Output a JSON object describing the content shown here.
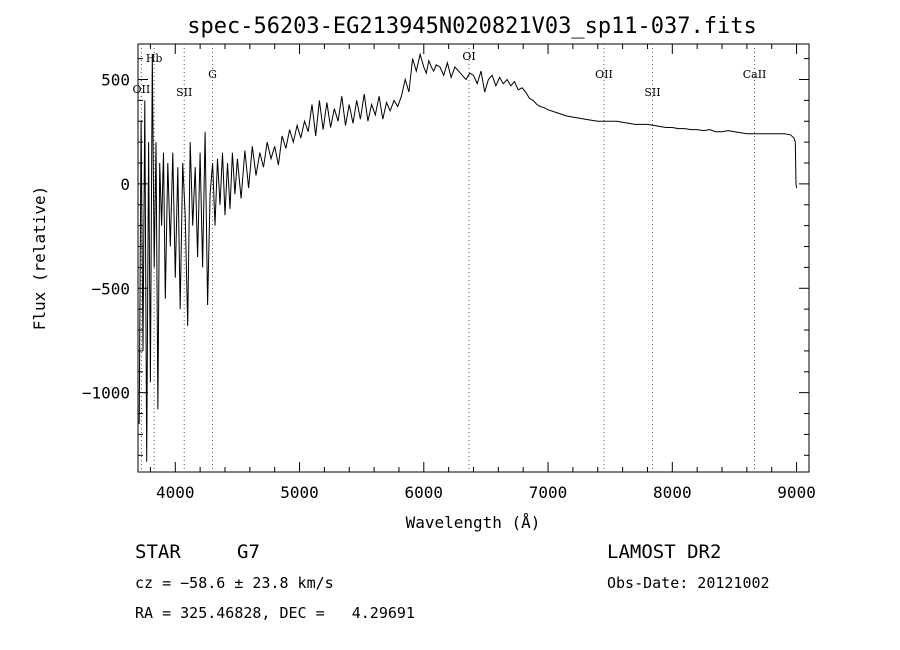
{
  "chart_data": {
    "type": "line",
    "title": "spec-56203-EG213945N020821V03_sp11-037.fits",
    "xlabel": "Wavelength (Å)",
    "ylabel": "Flux (relative)",
    "xlim": [
      3700,
      9100
    ],
    "ylim": [
      -1380,
      670
    ],
    "x_ticks": [
      4000,
      5000,
      6000,
      7000,
      8000,
      9000
    ],
    "y_ticks": [
      -1000,
      -500,
      0,
      500
    ],
    "grid": false,
    "line_color": "#000000",
    "spectral_lines": [
      {
        "name": "OII",
        "wavelength": 3727
      },
      {
        "name": "Hb",
        "wavelength": 3830
      },
      {
        "name": "SII",
        "wavelength": 4072
      },
      {
        "name": "G",
        "wavelength": 4300
      },
      {
        "name": "OI",
        "wavelength": 6364
      },
      {
        "name": "OII",
        "wavelength": 7450
      },
      {
        "name": "SII",
        "wavelength": 7840
      },
      {
        "name": "CaII",
        "wavelength": 8662
      }
    ],
    "series": [
      {
        "x": [
          3710,
          3725,
          3740,
          3755,
          3770,
          3785,
          3800,
          3815,
          3830,
          3845,
          3860,
          3875,
          3890,
          3905,
          3920,
          3940,
          3960,
          3980,
          4000,
          4020,
          4040,
          4060,
          4080,
          4100,
          4120,
          4140,
          4160,
          4180,
          4200,
          4220,
          4240,
          4260,
          4280,
          4300,
          4320,
          4340,
          4360,
          4380,
          4400,
          4420,
          4440,
          4460,
          4480,
          4500,
          4530,
          4560,
          4590,
          4620,
          4650,
          4680,
          4710,
          4740,
          4770,
          4800,
          4830,
          4860,
          4890,
          4920,
          4950,
          4980,
          5010,
          5040,
          5070,
          5100,
          5130,
          5160,
          5190,
          5220,
          5250,
          5280,
          5310,
          5340,
          5370,
          5400,
          5430,
          5460,
          5490,
          5520,
          5550,
          5580,
          5610,
          5640,
          5670,
          5700,
          5730,
          5760,
          5790,
          5820,
          5850,
          5880,
          5910,
          5940,
          5970,
          6000,
          6020,
          6040,
          6060,
          6080,
          6100,
          6130,
          6160,
          6190,
          6220,
          6250,
          6280,
          6310,
          6340,
          6370,
          6400,
          6430,
          6460,
          6490,
          6520,
          6550,
          6580,
          6610,
          6640,
          6670,
          6700,
          6730,
          6760,
          6790,
          6820,
          6850,
          6880,
          6910,
          6940,
          6970,
          7000,
          7050,
          7100,
          7150,
          7200,
          7250,
          7300,
          7350,
          7400,
          7450,
          7500,
          7550,
          7600,
          7650,
          7700,
          7750,
          7800,
          7850,
          7900,
          7950,
          8000,
          8050,
          8100,
          8150,
          8200,
          8250,
          8300,
          8350,
          8400,
          8450,
          8500,
          8550,
          8600,
          8650,
          8700,
          8750,
          8800,
          8850,
          8900,
          8950,
          8980,
          8990,
          8995,
          9000
        ],
        "y": [
          -1150,
          300,
          -800,
          400,
          -1330,
          200,
          -950,
          620,
          -400,
          200,
          -1080,
          100,
          -200,
          150,
          -550,
          100,
          -300,
          150,
          -450,
          80,
          -600,
          100,
          -150,
          -680,
          200,
          -200,
          80,
          -350,
          150,
          -400,
          250,
          -580,
          -50,
          100,
          -200,
          120,
          -100,
          150,
          -150,
          100,
          -120,
          150,
          -50,
          120,
          -70,
          160,
          -20,
          180,
          40,
          150,
          80,
          200,
          120,
          180,
          90,
          230,
          170,
          260,
          200,
          280,
          220,
          300,
          250,
          380,
          230,
          400,
          260,
          390,
          270,
          360,
          300,
          420,
          280,
          380,
          290,
          400,
          310,
          430,
          300,
          380,
          330,
          420,
          310,
          390,
          350,
          400,
          370,
          420,
          500,
          440,
          600,
          540,
          620,
          560,
          530,
          590,
          560,
          540,
          570,
          560,
          520,
          580,
          510,
          560,
          540,
          520,
          500,
          530,
          520,
          480,
          540,
          440,
          500,
          520,
          470,
          510,
          480,
          500,
          470,
          490,
          450,
          460,
          440,
          410,
          400,
          380,
          370,
          365,
          355,
          345,
          335,
          325,
          320,
          315,
          310,
          305,
          300,
          300,
          300,
          300,
          295,
          290,
          285,
          285,
          285,
          280,
          275,
          270,
          270,
          265,
          265,
          260,
          260,
          255,
          260,
          250,
          250,
          255,
          250,
          245,
          240,
          240,
          240,
          240,
          240,
          240,
          240,
          235,
          220,
          200,
          0,
          -20
        ]
      }
    ]
  },
  "info": {
    "class_label": "STAR",
    "subclass": "G7",
    "cz": "cz = −58.6 ± 23.8 km/s",
    "radec": "RA = 325.46828, DEC =   4.29691",
    "survey": "LAMOST DR2",
    "obs_date": "Obs-Date: 20121002"
  }
}
